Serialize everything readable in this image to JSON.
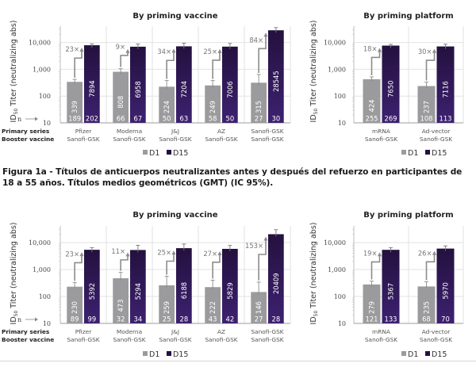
{
  "caption": "Figura 1a - Títulos de anticuerpos neutralizantes antes y después del refuerzo en participantes de 18 a 55 años. Títulos medios geométricos (GMT) (IC 95%).",
  "colors": {
    "D1": "#9b9b9e",
    "D15_top": "#24113f",
    "D15_bottom": "#3d2170",
    "grid": "#e2e2e2",
    "arrow": "#8c8c8c"
  },
  "chart_data": [
    {
      "id": "top-vaccine",
      "type": "bar",
      "title": "By priming vaccine",
      "ylabel": "ID50 Titer (neutralizing abs)",
      "yscale": "log",
      "ylim": [
        10,
        30000
      ],
      "yticks": [
        "10",
        "100",
        "1,000",
        "10,000"
      ],
      "n_label": "n",
      "row_labels": [
        "Primary series",
        "Booster vaccine"
      ],
      "categories": [
        {
          "primary": "Pfizer",
          "booster": "Sanofi-GSK"
        },
        {
          "primary": "Moderna",
          "booster": "Sanofi-GSK"
        },
        {
          "primary": "J&J",
          "booster": "Sanofi-GSK"
        },
        {
          "primary": "AZ",
          "booster": "Sanofi-GSK"
        },
        {
          "primary": "Sanofi-GSK",
          "booster": "Sanofi-GSK"
        }
      ],
      "legend": [
        "D1",
        "D15"
      ],
      "legend_position": "bottom",
      "series": [
        {
          "name": "D1",
          "values": [
            339,
            808,
            224,
            249,
            315
          ],
          "ci_upper": [
            420,
            1050,
            380,
            380,
            640
          ],
          "n": [
            189,
            66,
            50,
            58,
            27
          ]
        },
        {
          "name": "D15",
          "values": [
            7894,
            6958,
            7204,
            7006,
            28545
          ],
          "ci_upper": [
            8900,
            8800,
            9400,
            9200,
            36000
          ],
          "n": [
            202,
            67,
            63,
            50,
            30
          ]
        }
      ],
      "fold_changes": [
        "23×",
        "9×",
        "34×",
        "25×",
        "84×"
      ]
    },
    {
      "id": "top-platform",
      "type": "bar",
      "title": "By priming platform",
      "ylabel": "ID50 Titer (neutralizing abs)",
      "yscale": "log",
      "ylim": [
        10,
        30000
      ],
      "yticks": [
        "10",
        "100",
        "1,000",
        "10,000"
      ],
      "categories": [
        {
          "primary": "mRNA",
          "booster": "Sanofi-GSK"
        },
        {
          "primary": "Ad-vector",
          "booster": "Sanofi-GSK"
        }
      ],
      "legend": [
        "D1",
        "D15"
      ],
      "legend_position": "bottom",
      "series": [
        {
          "name": "D1",
          "values": [
            424,
            237
          ],
          "ci_upper": [
            520,
            330
          ],
          "n": [
            255,
            108
          ]
        },
        {
          "name": "D15",
          "values": [
            7650,
            7116
          ],
          "ci_upper": [
            8500,
            8600
          ],
          "n": [
            269,
            113
          ]
        }
      ],
      "fold_changes": [
        "18×",
        "30×"
      ]
    },
    {
      "id": "bottom-vaccine",
      "type": "bar",
      "title": "By priming vaccine",
      "ylabel": "ID50 Titer (neutralizing abs)",
      "yscale": "log",
      "ylim": [
        10,
        30000
      ],
      "yticks": [
        "10",
        "100",
        "1,000",
        "10,000"
      ],
      "n_label": "n",
      "row_labels": [
        "Primary series",
        "Booster vaccine"
      ],
      "categories": [
        {
          "primary": "Pfizer",
          "booster": "Sanofi-GSK"
        },
        {
          "primary": "Moderna",
          "booster": "Sanofi-GSK"
        },
        {
          "primary": "J&J",
          "booster": "Sanofi-GSK"
        },
        {
          "primary": "AZ",
          "booster": "Sanofi-GSK"
        },
        {
          "primary": "Sanofi-GSK",
          "booster": "Sanofi-GSK"
        }
      ],
      "legend": [
        "D1",
        "D15"
      ],
      "legend_position": "bottom",
      "series": [
        {
          "name": "D1",
          "values": [
            230,
            473,
            259,
            222,
            146
          ],
          "ci_upper": [
            330,
            780,
            560,
            400,
            340
          ],
          "n": [
            89,
            32,
            25,
            43,
            27
          ]
        },
        {
          "name": "D15",
          "values": [
            5392,
            5294,
            6188,
            5829,
            20409
          ],
          "ci_upper": [
            6500,
            7900,
            8800,
            7800,
            30000
          ],
          "n": [
            99,
            34,
            28,
            42,
            28
          ]
        }
      ],
      "fold_changes": [
        "23×",
        "11×",
        "25×",
        "27×",
        "153×"
      ]
    },
    {
      "id": "bottom-platform",
      "type": "bar",
      "title": "By priming platform",
      "ylabel": "ID50 Titer (neutralizing abs)",
      "yscale": "log",
      "ylim": [
        10,
        30000
      ],
      "yticks": [
        "10",
        "100",
        "1,000",
        "10,000"
      ],
      "categories": [
        {
          "primary": "mRNA",
          "booster": "Sanofi-GSK"
        },
        {
          "primary": "Ad-vector",
          "booster": "Sanofi-GSK"
        }
      ],
      "legend": [
        "D1",
        "D15"
      ],
      "legend_position": "bottom",
      "series": [
        {
          "name": "D1",
          "values": [
            279,
            235
          ],
          "ci_upper": [
            370,
            350
          ],
          "n": [
            121,
            68
          ]
        },
        {
          "name": "D15",
          "values": [
            5367,
            5970
          ],
          "ci_upper": [
            6400,
            7500
          ],
          "n": [
            133,
            70
          ]
        }
      ],
      "fold_changes": [
        "19×",
        "26×"
      ]
    }
  ]
}
